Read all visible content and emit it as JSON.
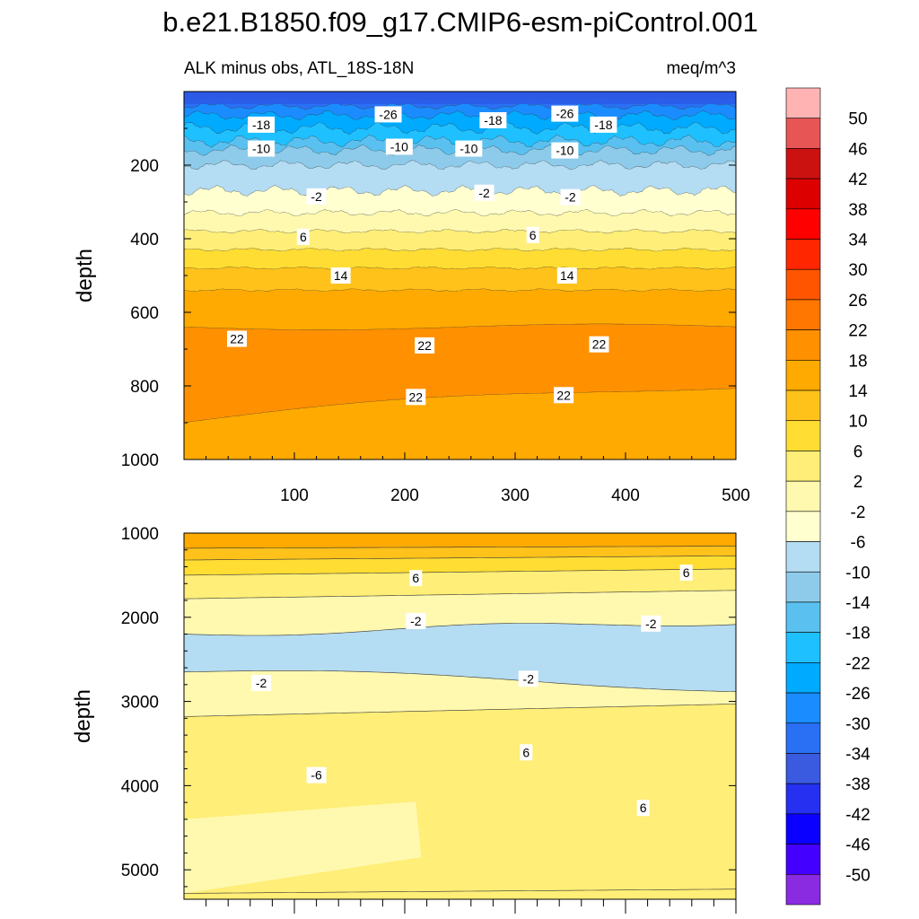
{
  "title": "b.e21.B1850.f09_g17.CMIP6-esm-piControl.001",
  "chart_data": [
    {
      "type": "contour",
      "panel": "upper",
      "left_subtitle": "ALK minus obs, ATL_18S-18N",
      "right_subtitle": "meq/m^3",
      "ylabel": "depth",
      "xlim": [
        0,
        500
      ],
      "ylim": [
        1000,
        0
      ],
      "x_ticks": [
        "100",
        "200",
        "300",
        "400",
        "500"
      ],
      "y_ticks": [
        "200",
        "400",
        "600",
        "800",
        "1000"
      ],
      "contour_labels": [
        {
          "text": "-18",
          "x": 70,
          "y": 90
        },
        {
          "text": "-26",
          "x": 185,
          "y": 62
        },
        {
          "text": "-18",
          "x": 280,
          "y": 78
        },
        {
          "text": "-26",
          "x": 345,
          "y": 60
        },
        {
          "text": "-18",
          "x": 380,
          "y": 90
        },
        {
          "text": "-10",
          "x": 70,
          "y": 155
        },
        {
          "text": "-10",
          "x": 195,
          "y": 150
        },
        {
          "text": "-10",
          "x": 258,
          "y": 155
        },
        {
          "text": "-10",
          "x": 345,
          "y": 160
        },
        {
          "text": "-2",
          "x": 120,
          "y": 285
        },
        {
          "text": "-2",
          "x": 272,
          "y": 275
        },
        {
          "text": "-2",
          "x": 350,
          "y": 287
        },
        {
          "text": "6",
          "x": 108,
          "y": 395
        },
        {
          "text": "6",
          "x": 316,
          "y": 390
        },
        {
          "text": "14",
          "x": 142,
          "y": 500
        },
        {
          "text": "14",
          "x": 347,
          "y": 500
        },
        {
          "text": "22",
          "x": 48,
          "y": 672
        },
        {
          "text": "22",
          "x": 218,
          "y": 690
        },
        {
          "text": "22",
          "x": 376,
          "y": 687
        },
        {
          "text": "22",
          "x": 210,
          "y": 830
        },
        {
          "text": "22",
          "x": 344,
          "y": 825
        }
      ]
    },
    {
      "type": "contour",
      "panel": "lower",
      "ylabel": "depth",
      "xlim": [
        0,
        500
      ],
      "ylim": [
        5350,
        1000
      ],
      "y_ticks": [
        "1000",
        "2000",
        "3000",
        "4000",
        "5000"
      ],
      "contour_labels": [
        {
          "text": "6",
          "x": 210,
          "y": 1535
        },
        {
          "text": "6",
          "x": 455,
          "y": 1470
        },
        {
          "text": "-2",
          "x": 210,
          "y": 2045
        },
        {
          "text": "-2",
          "x": 423,
          "y": 2075
        },
        {
          "text": "-2",
          "x": 70,
          "y": 2780
        },
        {
          "text": "-2",
          "x": 312,
          "y": 2730
        },
        {
          "text": "6",
          "x": 310,
          "y": 3605
        },
        {
          "text": "-6",
          "x": 120,
          "y": 3875
        },
        {
          "text": "6",
          "x": 416,
          "y": 4265
        }
      ]
    }
  ],
  "colorbar": {
    "labels": [
      "50",
      "46",
      "42",
      "38",
      "34",
      "30",
      "26",
      "22",
      "18",
      "14",
      "10",
      "6",
      "2",
      "-2",
      "-6",
      "-10",
      "-14",
      "-18",
      "-22",
      "-26",
      "-30",
      "-34",
      "-38",
      "-42",
      "-46",
      "-50"
    ],
    "colors": [
      "#ffb3b3",
      "#e85555",
      "#cc1111",
      "#dd0000",
      "#ff0000",
      "#ff2600",
      "#ff5500",
      "#ff7700",
      "#ff9000",
      "#ffaa00",
      "#ffc21a",
      "#ffdd33",
      "#ffee77",
      "#fff9b0",
      "#ffffd0",
      "#b4dcf2",
      "#8ecbea",
      "#5ac0f0",
      "#1ec0ff",
      "#00aaff",
      "#1a8cff",
      "#2a70f5",
      "#3a5ae0",
      "#2530f0",
      "#0a00ff",
      "#4400ff",
      "#8a2be2"
    ]
  }
}
